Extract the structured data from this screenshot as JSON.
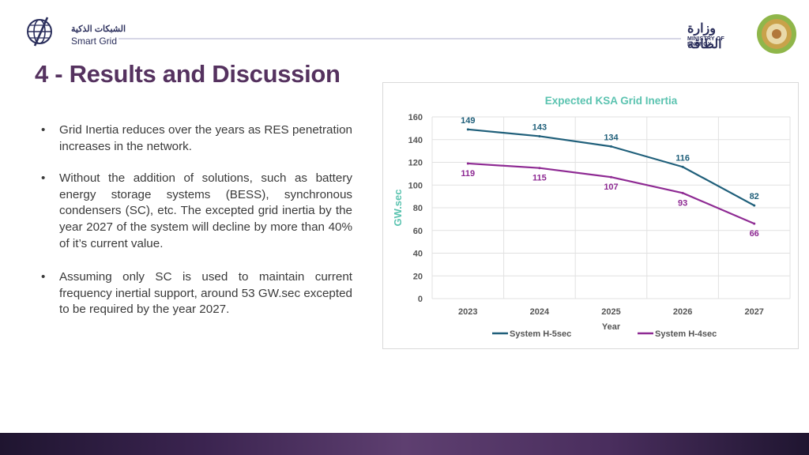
{
  "header": {
    "left_logo": {
      "arabic": "الشبكات الذكية",
      "english": "Smart Grid"
    },
    "right_logo": {
      "arabic": "وزارة الطاقة",
      "english": "MINISTRY OF ENERGY"
    }
  },
  "slide": {
    "title": "4 - Results and Discussion",
    "bullets": [
      "Grid Inertia reduces over the years as RES penetration increases in the network.",
      "Without the addition of solutions, such as battery energy storage systems (BESS), synchronous condensers (SC), etc. The excepted grid inertia by the year 2027 of the system will decline by more than 40% of it’s current value.",
      "Assuming only SC is used to maintain current frequency inertial support, around 53 GW.sec excepted to be required by the year 2027."
    ]
  },
  "chart_data": {
    "type": "line",
    "title": "Expected KSA Grid Inertia",
    "xlabel": "Year",
    "ylabel": "GW.sec",
    "ylim": [
      0,
      160
    ],
    "yticks": [
      0,
      20,
      40,
      60,
      80,
      100,
      120,
      140,
      160
    ],
    "categories": [
      "2023",
      "2024",
      "2025",
      "2026",
      "2027"
    ],
    "grid": true,
    "legend": "bottom",
    "series": [
      {
        "name": "System H-5sec",
        "values": [
          149,
          143,
          134,
          116,
          82
        ],
        "color": "#1f5f7a"
      },
      {
        "name": "System H-4sec",
        "values": [
          119,
          115,
          107,
          93,
          66
        ],
        "color": "#8e2a93"
      }
    ]
  }
}
